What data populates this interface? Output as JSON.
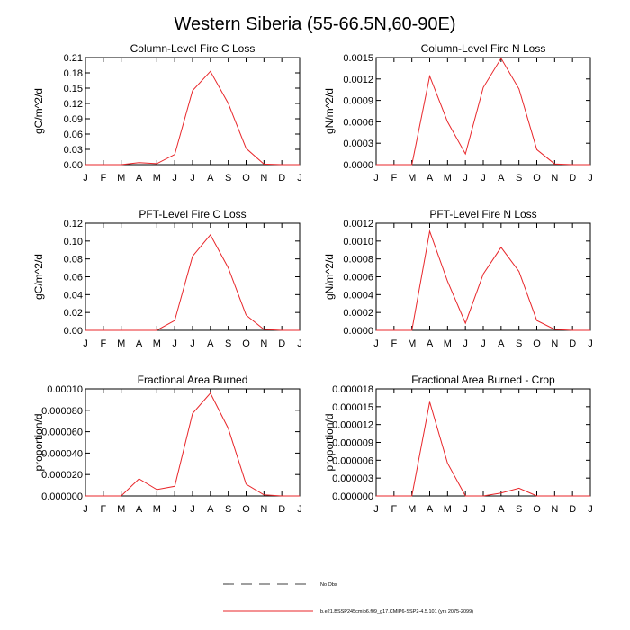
{
  "title": "Western Siberia (55-66.5N,60-90E)",
  "legend": {
    "obs_label": "No Obs",
    "model_label": "b.e21.BSSP245cmip6.f09_g17.CMIP6-SSP2-4.5.101 (yrs 2075-2099)",
    "model_color": "#e8262a",
    "obs_color": "#000000"
  },
  "chart_data": [
    {
      "type": "line",
      "title": "Column-Level Fire C Loss",
      "ylabel": "gC/m^2/d",
      "categories": [
        "J",
        "F",
        "M",
        "A",
        "M",
        "J",
        "J",
        "A",
        "S",
        "O",
        "N",
        "D",
        "J"
      ],
      "yticks": [
        "0.00",
        "0.03",
        "0.06",
        "0.09",
        "0.12",
        "0.15",
        "0.18",
        "0.21"
      ],
      "ylim": [
        0,
        0.21
      ],
      "values": [
        0,
        0,
        0,
        0.004,
        0.002,
        0.02,
        0.145,
        0.183,
        0.12,
        0.032,
        0.001,
        0,
        0
      ]
    },
    {
      "type": "line",
      "title": "Column-Level Fire N Loss",
      "ylabel": "gN/m^2/d",
      "categories": [
        "J",
        "F",
        "M",
        "A",
        "M",
        "J",
        "J",
        "A",
        "S",
        "O",
        "N",
        "D",
        "J"
      ],
      "yticks": [
        "0.0000",
        "0.0003",
        "0.0006",
        "0.0009",
        "0.0012",
        "0.0015"
      ],
      "ylim": [
        0,
        0.0015
      ],
      "values": [
        0,
        0,
        0,
        0.00124,
        0.0006,
        0.00015,
        0.00108,
        0.00149,
        0.00106,
        0.00021,
        1e-05,
        0,
        0
      ]
    },
    {
      "type": "line",
      "title": "PFT-Level Fire C Loss",
      "ylabel": "gC/m^2/d",
      "categories": [
        "J",
        "F",
        "M",
        "A",
        "M",
        "J",
        "J",
        "A",
        "S",
        "O",
        "N",
        "D",
        "J"
      ],
      "yticks": [
        "0.00",
        "0.02",
        "0.04",
        "0.06",
        "0.08",
        "0.10",
        "0.12"
      ],
      "ylim": [
        0,
        0.12
      ],
      "values": [
        0,
        0,
        0,
        0,
        0,
        0.011,
        0.083,
        0.107,
        0.07,
        0.017,
        0.001,
        0,
        0
      ]
    },
    {
      "type": "line",
      "title": "PFT-Level Fire N Loss",
      "ylabel": "gN/m^2/d",
      "categories": [
        "J",
        "F",
        "M",
        "A",
        "M",
        "J",
        "J",
        "A",
        "S",
        "O",
        "N",
        "D",
        "J"
      ],
      "yticks": [
        "0.0000",
        "0.0002",
        "0.0004",
        "0.0006",
        "0.0008",
        "0.0010",
        "0.0012"
      ],
      "ylim": [
        0,
        0.0012
      ],
      "values": [
        0,
        0,
        0,
        0.00111,
        0.00055,
        8e-05,
        0.00063,
        0.00093,
        0.00066,
        0.00011,
        1e-05,
        0,
        0
      ]
    },
    {
      "type": "line",
      "title": "Fractional Area Burned",
      "ylabel": "proportion/d",
      "categories": [
        "J",
        "F",
        "M",
        "A",
        "M",
        "J",
        "J",
        "A",
        "S",
        "O",
        "N",
        "D",
        "J"
      ],
      "yticks": [
        "0.000000",
        "0.000020",
        "0.000040",
        "0.000060",
        "0.000080",
        "0.00010"
      ],
      "ylim": [
        0,
        0.0001
      ],
      "values": [
        0,
        0,
        0,
        1.6e-05,
        6e-06,
        9e-06,
        7.7e-05,
        9.6e-05,
        6.3e-05,
        1.1e-05,
        1e-06,
        0,
        0
      ]
    },
    {
      "type": "line",
      "title": "Fractional Area Burned - Crop",
      "ylabel": "proportion/d",
      "categories": [
        "J",
        "F",
        "M",
        "A",
        "M",
        "J",
        "J",
        "A",
        "S",
        "O",
        "N",
        "D",
        "J"
      ],
      "yticks": [
        "0.000000",
        "0.000003",
        "0.000006",
        "0.000009",
        "0.000012",
        "0.000015",
        "0.000018"
      ],
      "ylim": [
        0,
        1.8e-05
      ],
      "values": [
        0,
        0,
        0,
        1.58e-05,
        5.5e-06,
        0,
        0,
        5e-07,
        1.3e-06,
        0,
        0,
        0,
        0
      ]
    }
  ]
}
